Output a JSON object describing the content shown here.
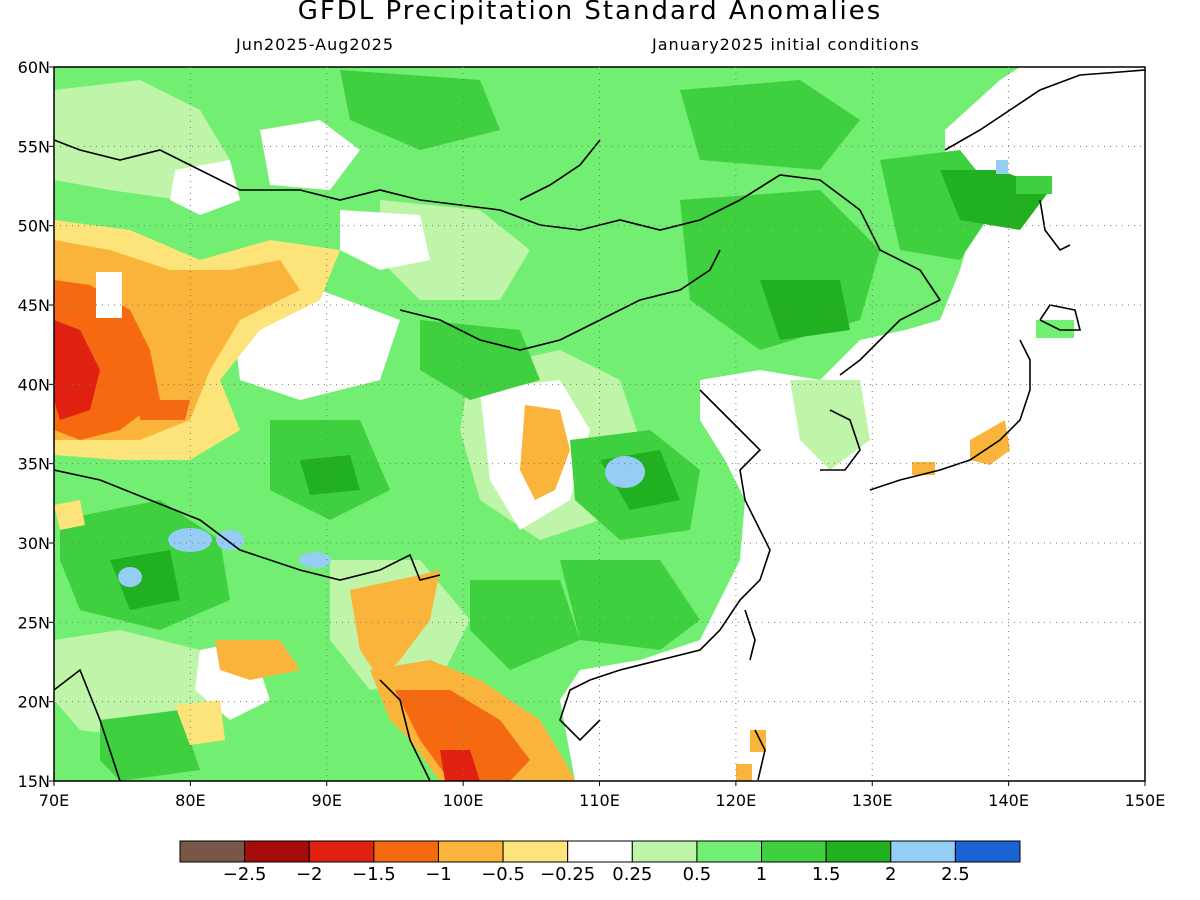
{
  "title": "GFDL Precipitation Standard Anomalies",
  "subtitle_left": "Jun2025-Aug2025",
  "subtitle_right": "January2025 initial conditions",
  "map": {
    "lon_range": [
      70,
      150
    ],
    "lat_range": [
      15,
      60
    ],
    "lon_ticks": [
      {
        "value": 70,
        "label": "70E"
      },
      {
        "value": 80,
        "label": "80E"
      },
      {
        "value": 90,
        "label": "90E"
      },
      {
        "value": 100,
        "label": "100E"
      },
      {
        "value": 110,
        "label": "110E"
      },
      {
        "value": 120,
        "label": "120E"
      },
      {
        "value": 130,
        "label": "130E"
      },
      {
        "value": 140,
        "label": "140E"
      },
      {
        "value": 150,
        "label": "150E"
      }
    ],
    "lat_ticks": [
      {
        "value": 15,
        "label": "15N"
      },
      {
        "value": 20,
        "label": "20N"
      },
      {
        "value": 25,
        "label": "25N"
      },
      {
        "value": 30,
        "label": "30N"
      },
      {
        "value": 35,
        "label": "35N"
      },
      {
        "value": 40,
        "label": "40N"
      },
      {
        "value": 45,
        "label": "45N"
      },
      {
        "value": 50,
        "label": "50N"
      },
      {
        "value": 55,
        "label": "55N"
      },
      {
        "value": 60,
        "label": "60N"
      }
    ],
    "grid": "dotted"
  },
  "colorbar": {
    "colors": [
      "#7a5648",
      "#a50d0d",
      "#e0210f",
      "#f56a10",
      "#fab43c",
      "#fde47a",
      "#ffffff",
      "#bff5a8",
      "#72ee72",
      "#3fd03f",
      "#20b020",
      "#96cdf5",
      "#1b63d3"
    ],
    "labels": [
      "-2.5",
      "-2",
      "-1.5",
      "-1",
      "-0.5",
      "-0.25",
      "0.25",
      "0.5",
      "1",
      "1.5",
      "2",
      "2.5"
    ]
  }
}
